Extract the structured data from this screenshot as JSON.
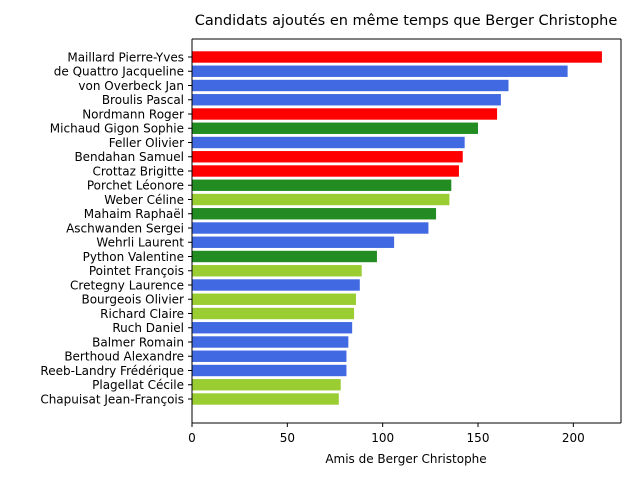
{
  "chart_data": {
    "type": "bar",
    "orientation": "horizontal",
    "title": "Candidats ajoutés en même temps que Berger Christophe",
    "xlabel": "Amis de Berger Christophe",
    "ylabel": "",
    "xlim": [
      0,
      225
    ],
    "xticks": [
      0,
      50,
      100,
      150,
      200
    ],
    "grid": false,
    "colors": {
      "red": "#ff0000",
      "blue": "#4169e1",
      "green": "#228b22",
      "lightgreen": "#9acd32"
    },
    "bars": [
      {
        "label": "Maillard Pierre-Yves",
        "value": 215,
        "color": "red"
      },
      {
        "label": "de Quattro Jacqueline",
        "value": 197,
        "color": "blue"
      },
      {
        "label": "von Overbeck Jan",
        "value": 166,
        "color": "blue"
      },
      {
        "label": "Broulis Pascal",
        "value": 162,
        "color": "blue"
      },
      {
        "label": "Nordmann Roger",
        "value": 160,
        "color": "red"
      },
      {
        "label": "Michaud Gigon Sophie",
        "value": 150,
        "color": "green"
      },
      {
        "label": "Feller Olivier",
        "value": 143,
        "color": "blue"
      },
      {
        "label": "Bendahan Samuel",
        "value": 142,
        "color": "red"
      },
      {
        "label": "Crottaz Brigitte",
        "value": 140,
        "color": "red"
      },
      {
        "label": "Porchet Léonore",
        "value": 136,
        "color": "green"
      },
      {
        "label": "Weber Céline",
        "value": 135,
        "color": "lightgreen"
      },
      {
        "label": "Mahaim Raphaël",
        "value": 128,
        "color": "green"
      },
      {
        "label": "Aschwanden Sergei",
        "value": 124,
        "color": "blue"
      },
      {
        "label": "Wehrli Laurent",
        "value": 106,
        "color": "blue"
      },
      {
        "label": "Python Valentine",
        "value": 97,
        "color": "green"
      },
      {
        "label": "Pointet François",
        "value": 89,
        "color": "lightgreen"
      },
      {
        "label": "Cretegny Laurence",
        "value": 88,
        "color": "blue"
      },
      {
        "label": "Bourgeois Olivier",
        "value": 86,
        "color": "lightgreen"
      },
      {
        "label": "Richard Claire",
        "value": 85,
        "color": "lightgreen"
      },
      {
        "label": "Ruch Daniel",
        "value": 84,
        "color": "blue"
      },
      {
        "label": "Balmer Romain",
        "value": 82,
        "color": "blue"
      },
      {
        "label": "Berthoud Alexandre",
        "value": 81,
        "color": "blue"
      },
      {
        "label": "Reeb-Landry Frédérique",
        "value": 81,
        "color": "blue"
      },
      {
        "label": "Plagellat Cécile",
        "value": 78,
        "color": "lightgreen"
      },
      {
        "label": "Chapuisat Jean-François",
        "value": 77,
        "color": "lightgreen"
      }
    ]
  }
}
